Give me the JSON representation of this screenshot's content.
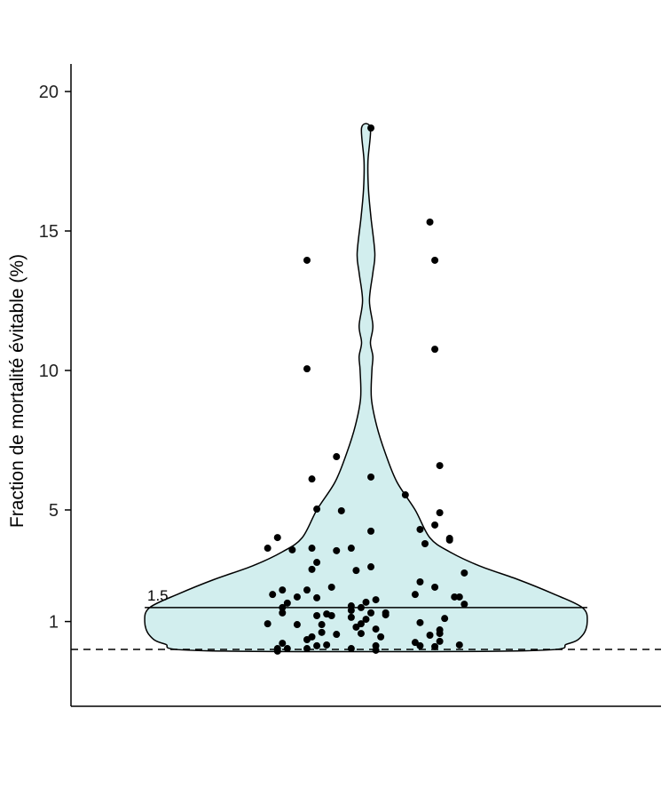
{
  "chart_data": {
    "type": "violin",
    "title": "",
    "xlabel": "",
    "ylabel": "Fraction de mortalité évitable (%)",
    "yticks": [
      1,
      5,
      10,
      15,
      20
    ],
    "ylim": [
      -2,
      21
    ],
    "xlim": [
      0.4,
      1.6
    ],
    "grid": false,
    "colors": {
      "violin_fill": "#d2eeee",
      "outline": "#000000",
      "points": "#000000"
    },
    "reference_line": {
      "value": 1.5,
      "label": "1.5"
    },
    "dashed_line": {
      "value": 0
    },
    "violin_profile": [
      [
        -0.05,
        0.32
      ],
      [
        0.2,
        0.41
      ],
      [
        0.5,
        0.44
      ],
      [
        1,
        0.45
      ],
      [
        1.5,
        0.44
      ],
      [
        2,
        0.38
      ],
      [
        2.5,
        0.31
      ],
      [
        3,
        0.23
      ],
      [
        3.5,
        0.17
      ],
      [
        4,
        0.13
      ],
      [
        5,
        0.1
      ],
      [
        6,
        0.063
      ],
      [
        7,
        0.04
      ],
      [
        8,
        0.022
      ],
      [
        9,
        0.011
      ],
      [
        10,
        0.012
      ],
      [
        10.5,
        0.014
      ],
      [
        11,
        0.009
      ],
      [
        11.6,
        0.014
      ],
      [
        12.5,
        0.007
      ],
      [
        13.5,
        0.014
      ],
      [
        14.2,
        0.018
      ],
      [
        15.5,
        0.01
      ],
      [
        16.5,
        0.005
      ],
      [
        17.5,
        0.004
      ],
      [
        18.7,
        0.009
      ]
    ],
    "points": [
      [
        0.94,
        6.91
      ],
      [
        0.89,
        6.11
      ],
      [
        1.01,
        6.18
      ],
      [
        1.15,
        6.59
      ],
      [
        1.08,
        5.54
      ],
      [
        0.9,
        5.03
      ],
      [
        0.95,
        4.97
      ],
      [
        1.15,
        4.9
      ],
      [
        1.14,
        4.46
      ],
      [
        1.11,
        4.3
      ],
      [
        1.01,
        4.24
      ],
      [
        0.82,
        4.01
      ],
      [
        0.8,
        3.63
      ],
      [
        0.85,
        3.57
      ],
      [
        0.89,
        3.63
      ],
      [
        0.94,
        3.54
      ],
      [
        0.97,
        3.63
      ],
      [
        1.12,
        3.79
      ],
      [
        1.17,
        3.98
      ],
      [
        1.17,
        3.92
      ],
      [
        0.9,
        3.12
      ],
      [
        0.89,
        2.87
      ],
      [
        0.98,
        2.83
      ],
      [
        1.01,
        2.96
      ],
      [
        1.2,
        2.74
      ],
      [
        0.93,
        2.23
      ],
      [
        0.81,
        1.97
      ],
      [
        0.83,
        2.13
      ],
      [
        0.86,
        1.88
      ],
      [
        0.88,
        2.13
      ],
      [
        0.9,
        1.85
      ],
      [
        0.84,
        1.66
      ],
      [
        1.11,
        2.42
      ],
      [
        1.1,
        1.97
      ],
      [
        1.14,
        2.23
      ],
      [
        1.18,
        1.88
      ],
      [
        1.19,
        1.88
      ],
      [
        1.2,
        1.62
      ],
      [
        0.83,
        1.5
      ],
      [
        0.83,
        1.31
      ],
      [
        0.97,
        1.56
      ],
      [
        0.99,
        1.5
      ],
      [
        1.0,
        1.69
      ],
      [
        1.02,
        1.78
      ],
      [
        0.97,
        1.4
      ],
      [
        0.8,
        0.92
      ],
      [
        0.86,
        0.89
      ],
      [
        0.9,
        1.21
      ],
      [
        0.92,
        1.27
      ],
      [
        0.93,
        1.21
      ],
      [
        0.91,
        0.89
      ],
      [
        0.97,
        1.15
      ],
      [
        1.0,
        1.08
      ],
      [
        1.01,
        1.31
      ],
      [
        1.04,
        1.31
      ],
      [
        1.04,
        1.24
      ],
      [
        0.99,
        0.92
      ],
      [
        0.98,
        0.8
      ],
      [
        0.91,
        0.61
      ],
      [
        0.94,
        0.54
      ],
      [
        0.99,
        0.57
      ],
      [
        1.02,
        0.73
      ],
      [
        1.03,
        0.45
      ],
      [
        1.11,
        0.96
      ],
      [
        1.16,
        1.11
      ],
      [
        1.15,
        0.7
      ],
      [
        1.15,
        0.57
      ],
      [
        1.13,
        0.51
      ],
      [
        0.88,
        0.35
      ],
      [
        0.89,
        0.45
      ],
      [
        0.83,
        0.22
      ],
      [
        0.82,
        0.03
      ],
      [
        0.82,
        -0.06
      ],
      [
        0.84,
        0.03
      ],
      [
        0.88,
        0.03
      ],
      [
        0.9,
        0.13
      ],
      [
        0.92,
        0.16
      ],
      [
        0.97,
        0.03
      ],
      [
        1.02,
        0.13
      ],
      [
        1.02,
        -0.03
      ],
      [
        1.1,
        0.25
      ],
      [
        1.11,
        0.13
      ],
      [
        1.15,
        0.29
      ],
      [
        1.14,
        0.1
      ],
      [
        1.19,
        0.16
      ],
      [
        1.01,
        18.69
      ],
      [
        1.13,
        15.32
      ],
      [
        0.88,
        13.95
      ],
      [
        1.14,
        13.95
      ],
      [
        0.88,
        10.06
      ],
      [
        1.14,
        10.76
      ]
    ]
  }
}
